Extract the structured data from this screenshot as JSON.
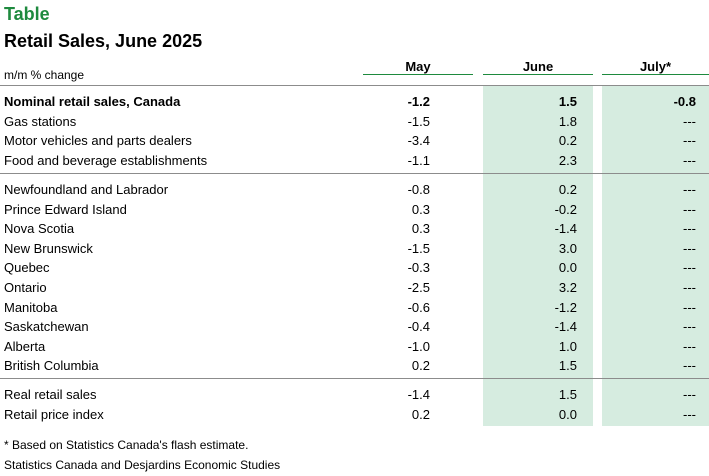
{
  "header": {
    "label": "Table",
    "title": "Retail Sales, June 2025",
    "unit": "m/m % change"
  },
  "columns": [
    "May",
    "June",
    "July*"
  ],
  "groups": [
    {
      "rows": [
        {
          "label": "Nominal retail sales, Canada",
          "may": "-1.2",
          "june": "1.5",
          "july": "-0.8",
          "bold": true
        },
        {
          "label": "Gas stations",
          "may": "-1.5",
          "june": "1.8",
          "july": "---"
        },
        {
          "label": "Motor vehicles and parts dealers",
          "may": "-3.4",
          "june": "0.2",
          "july": "---"
        },
        {
          "label": "Food and beverage establishments",
          "may": "-1.1",
          "june": "2.3",
          "july": "---"
        }
      ]
    },
    {
      "rows": [
        {
          "label": "Newfoundland and Labrador",
          "may": "-0.8",
          "june": "0.2",
          "july": "---"
        },
        {
          "label": "Prince Edward Island",
          "may": "0.3",
          "june": "-0.2",
          "july": "---"
        },
        {
          "label": "Nova Scotia",
          "may": "0.3",
          "june": "-1.4",
          "july": "---"
        },
        {
          "label": "New Brunswick",
          "may": "-1.5",
          "june": "3.0",
          "july": "---"
        },
        {
          "label": "Quebec",
          "may": "-0.3",
          "june": "0.0",
          "july": "---"
        },
        {
          "label": "Ontario",
          "may": "-2.5",
          "june": "3.2",
          "july": "---"
        },
        {
          "label": "Manitoba",
          "may": "-0.6",
          "june": "-1.2",
          "july": "---"
        },
        {
          "label": "Saskatchewan",
          "may": "-0.4",
          "june": "-1.4",
          "july": "---"
        },
        {
          "label": "Alberta",
          "may": "-1.0",
          "june": "1.0",
          "july": "---"
        },
        {
          "label": "British Columbia",
          "may": "0.2",
          "june": "1.5",
          "july": "---"
        }
      ]
    },
    {
      "rows": [
        {
          "label": "Real retail sales",
          "may": "-1.4",
          "june": "1.5",
          "july": "---"
        },
        {
          "label": "Retail price index",
          "may": "0.2",
          "june": "0.0",
          "july": "---"
        }
      ]
    }
  ],
  "notes": {
    "footnote": "* Based on Statistics Canada's flash estimate.",
    "source": "Statistics Canada and Desjardins Economic Studies"
  },
  "colors": {
    "accent": "#1e8a3e",
    "shade": "#d6ece0"
  }
}
